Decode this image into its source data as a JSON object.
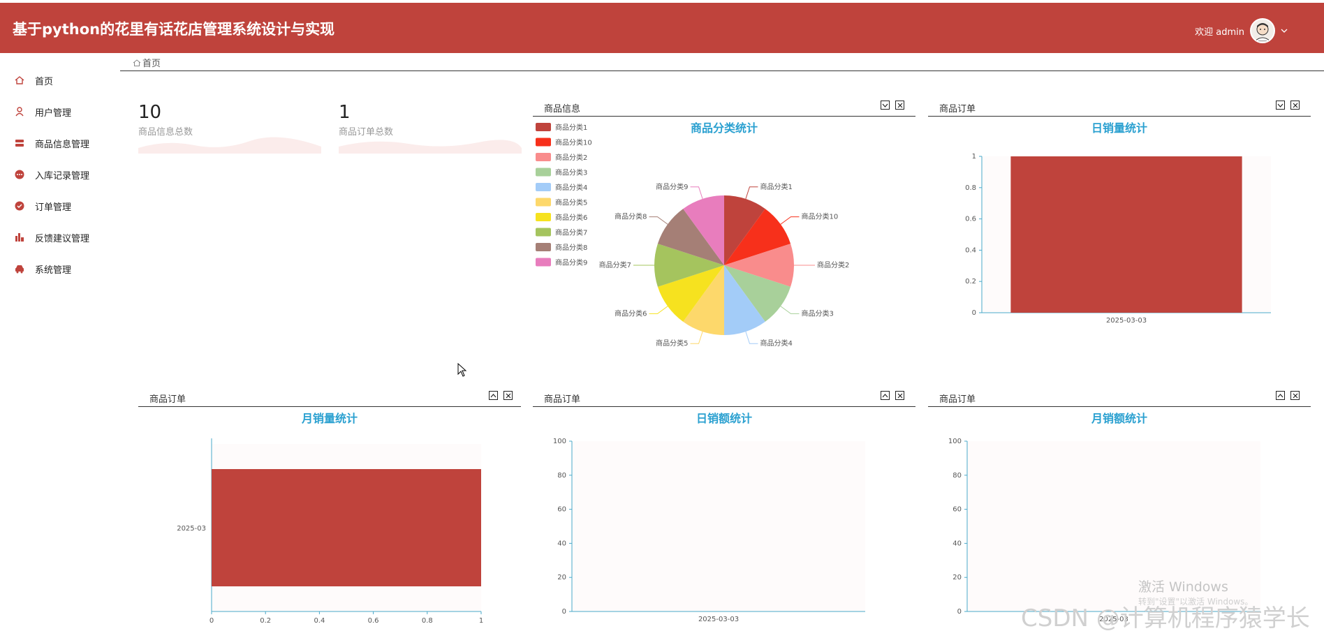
{
  "header": {
    "title": "基于python的花里有话花店管理系统设计与实现",
    "welcome": "欢迎 admin"
  },
  "sidebar": {
    "items": [
      {
        "label": "首页",
        "icon": "home-icon"
      },
      {
        "label": "用户管理",
        "icon": "user-icon"
      },
      {
        "label": "商品信息管理",
        "icon": "server-icon"
      },
      {
        "label": "入库记录管理",
        "icon": "dots-circle-icon"
      },
      {
        "label": "订单管理",
        "icon": "check-circle-icon"
      },
      {
        "label": "反馈建议管理",
        "icon": "bar-chart-icon"
      },
      {
        "label": "系统管理",
        "icon": "car-icon"
      }
    ]
  },
  "breadcrumb": {
    "label": "首页"
  },
  "stats": [
    {
      "value": "10",
      "label": "商品信息总数"
    },
    {
      "value": "1",
      "label": "商品订单总数"
    }
  ],
  "panels": {
    "p1": {
      "header": "商品信息",
      "chart_title": "商品分类统计"
    },
    "p2": {
      "header": "商品订单",
      "chart_title": "日销量统计"
    },
    "p3": {
      "header": "商品订单",
      "chart_title": "月销量统计"
    },
    "p4": {
      "header": "商品订单",
      "chart_title": "日销额统计"
    },
    "p5": {
      "header": "商品订单",
      "chart_title": "月销额统计"
    }
  },
  "colors": {
    "header_bg": "#bf433c",
    "bar": "#bf433c",
    "chart_title": "#2aa0d0",
    "axis": "#4aa8c8"
  },
  "chart_data": [
    {
      "type": "pie",
      "title": "商品分类统计",
      "legend_position": "top-left",
      "labels": [
        "商品分类1",
        "商品分类10",
        "商品分类2",
        "商品分类3",
        "商品分类4",
        "商品分类5",
        "商品分类6",
        "商品分类7",
        "商品分类8",
        "商品分类9"
      ],
      "values": [
        1,
        1,
        1,
        1,
        1,
        1,
        1,
        1,
        1,
        1
      ],
      "colors": [
        "#bf433c",
        "#f7301b",
        "#f98c8c",
        "#a8d09a",
        "#a3ccf8",
        "#fdd86b",
        "#f6e21f",
        "#a5c45e",
        "#a57f76",
        "#e87dbd"
      ]
    },
    {
      "type": "bar",
      "title": "日销量统计",
      "categories": [
        "2025-03-03"
      ],
      "values": [
        1
      ],
      "ylim": [
        0,
        1
      ],
      "yticks": [
        "0",
        "0.2",
        "0.4",
        "0.6",
        "0.8",
        "1"
      ]
    },
    {
      "type": "bar",
      "orientation": "horizontal",
      "title": "月销量统计",
      "categories": [
        "2025-03"
      ],
      "values": [
        1
      ],
      "xlim": [
        0,
        1
      ],
      "xticks": [
        "0",
        "0.2",
        "0.4",
        "0.6",
        "0.8",
        "1"
      ]
    },
    {
      "type": "bar",
      "title": "日销额统计",
      "categories": [
        "2025-03-03"
      ],
      "values": [
        0
      ],
      "ylim": [
        0,
        100
      ],
      "yticks": [
        "0",
        "20",
        "40",
        "60",
        "80",
        "100"
      ]
    },
    {
      "type": "bar",
      "title": "月销额统计",
      "categories": [
        "2025-03"
      ],
      "values": [
        0
      ],
      "ylim": [
        0,
        100
      ],
      "yticks": [
        "0",
        "20",
        "40",
        "60",
        "80",
        "100"
      ]
    }
  ],
  "watermark": {
    "activate": "激活 Windows",
    "activate_sub": "转到\"设置\"以激活 Windows。",
    "csdn": "CSDN @计算机程序猿学长"
  }
}
